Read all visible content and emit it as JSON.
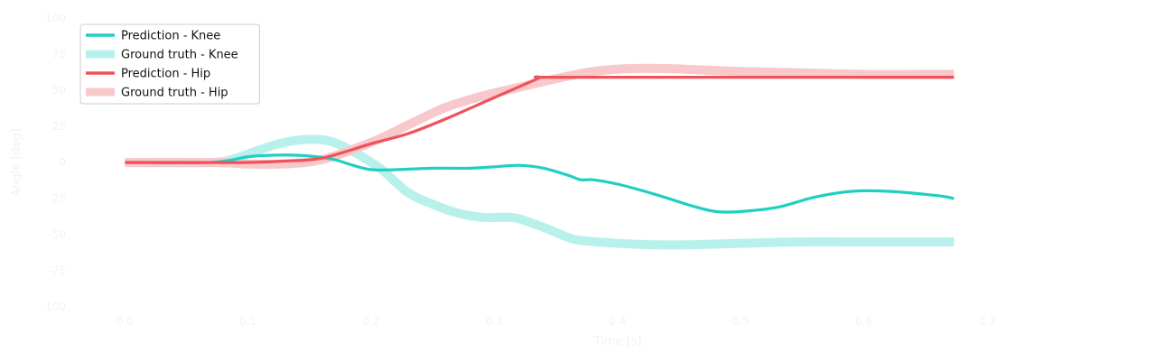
{
  "chart_data": {
    "type": "line",
    "title": "",
    "xlabel": "Time [s]",
    "ylabel": "Angle [deg]",
    "xlim": [
      -0.0333,
      0.8333
    ],
    "ylim": [
      -100,
      100
    ],
    "x_ticks": [
      0.0,
      0.1,
      0.2,
      0.3,
      0.4,
      0.5,
      0.6,
      0.7
    ],
    "x_tick_labels": [
      "0.0",
      "0.1",
      "0.2",
      "0.3",
      "0.4",
      "0.5",
      "0.6",
      "0.7"
    ],
    "y_ticks": [
      -100,
      -75,
      -50,
      -25,
      0,
      25,
      50,
      75,
      100
    ],
    "y_tick_labels": [
      "-100",
      "-75",
      "-50",
      "-25",
      "0",
      "25",
      "50",
      "75",
      "100"
    ],
    "grid": false,
    "legend": "top-left",
    "series": [
      {
        "name": "Prediction - Knee",
        "color": "#1fcfc2",
        "style": "prediction",
        "x": [
          0.0,
          0.07,
          0.1,
          0.12,
          0.14,
          0.155,
          0.17,
          0.185,
          0.2,
          0.22,
          0.25,
          0.28,
          0.3,
          0.32,
          0.34,
          0.36,
          0.37,
          0.38,
          0.4,
          0.43,
          0.46,
          0.48,
          0.5,
          0.53,
          0.56,
          0.59,
          0.62,
          0.66,
          0.673
        ],
        "y": [
          0,
          0,
          4,
          5,
          5,
          4,
          2,
          -2,
          -5,
          -5,
          -4,
          -4,
          -3,
          -2,
          -4,
          -9,
          -12,
          -12,
          -15,
          -22,
          -30,
          -34,
          -34,
          -31,
          -24,
          -20,
          -20,
          -23,
          -25
        ]
      },
      {
        "name": "Ground truth - Knee",
        "color": "#b8f1ec",
        "style": "ground-truth",
        "x": [
          0.0,
          0.07,
          0.09,
          0.11,
          0.13,
          0.15,
          0.165,
          0.18,
          0.2,
          0.21,
          0.23,
          0.25,
          0.27,
          0.29,
          0.31,
          0.32,
          0.34,
          0.36,
          0.37,
          0.4,
          0.43,
          0.46,
          0.5,
          0.55,
          0.6,
          0.65,
          0.673
        ],
        "y": [
          0,
          0,
          3,
          9,
          14,
          16,
          15,
          10,
          0,
          -6,
          -21,
          -29,
          -35,
          -38,
          -38,
          -39,
          -45,
          -52,
          -54,
          -56,
          -57,
          -57,
          -56,
          -55,
          -55,
          -55,
          -55
        ]
      },
      {
        "name": "Prediction - Hip",
        "color": "#f0525a",
        "style": "prediction",
        "x": [
          0.0,
          0.05,
          0.1,
          0.13,
          0.16,
          0.2,
          0.23,
          0.26,
          0.3,
          0.335,
          0.337,
          0.4,
          0.5,
          0.6,
          0.673
        ],
        "y": [
          0,
          0,
          0,
          1,
          3,
          13,
          20,
          30,
          45,
          58,
          59,
          59,
          59,
          59,
          59
        ]
      },
      {
        "name": "Ground truth - Hip",
        "color": "#f9c8cb",
        "style": "ground-truth",
        "x": [
          0.0,
          0.07,
          0.1,
          0.13,
          0.16,
          0.2,
          0.23,
          0.26,
          0.29,
          0.32,
          0.35,
          0.38,
          0.41,
          0.44,
          0.47,
          0.5,
          0.55,
          0.6,
          0.65,
          0.673
        ],
        "y": [
          0,
          0,
          -1,
          -1,
          2,
          14,
          26,
          38,
          46,
          52,
          58,
          63,
          65,
          65,
          64,
          63,
          62,
          61,
          61,
          61
        ]
      }
    ]
  }
}
